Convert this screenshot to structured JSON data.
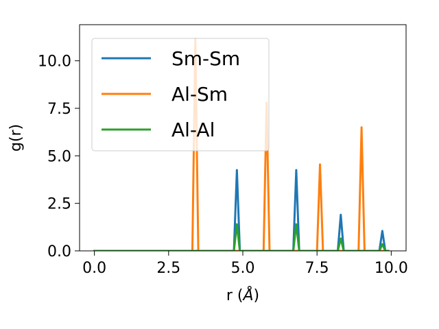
{
  "chart_data": {
    "type": "line",
    "xlabel_main": "r (",
    "xlabel_unit": "Å",
    "xlabel_close": ")",
    "ylabel": "g(r)",
    "xlim": [
      -0.5,
      10.5
    ],
    "ylim": [
      0,
      11.9
    ],
    "xticks": [
      0.0,
      2.5,
      5.0,
      7.5,
      10.0
    ],
    "xtick_labels": [
      "0.0",
      "2.5",
      "5.0",
      "7.5",
      "10.0"
    ],
    "yticks": [
      0.0,
      2.5,
      5.0,
      7.5,
      10.0
    ],
    "ytick_labels": [
      "0.0",
      "2.5",
      "5.0",
      "7.5",
      "10.0"
    ],
    "grid": false,
    "legend_position": "upper-left",
    "series": [
      {
        "name": "Sm-Sm",
        "color": "#1f77b4",
        "x": [
          0.0,
          4.7,
          4.8,
          4.9,
          6.7,
          6.8,
          6.9,
          8.2,
          8.3,
          8.4,
          9.6,
          9.7,
          9.8,
          9.9
        ],
        "y": [
          0.0,
          0.0,
          4.25,
          0.0,
          0.0,
          4.25,
          0.0,
          0.0,
          1.9,
          0.0,
          0.0,
          1.05,
          0.0,
          0.0
        ]
      },
      {
        "name": "Al-Sm",
        "color": "#ff7f0e",
        "x": [
          0.0,
          3.3,
          3.4,
          3.5,
          5.7,
          5.8,
          5.9,
          7.5,
          7.6,
          7.7,
          8.9,
          9.0,
          9.1,
          9.9
        ],
        "y": [
          0.0,
          0.0,
          11.15,
          0.0,
          0.0,
          7.8,
          0.0,
          0.0,
          4.55,
          0.0,
          0.0,
          6.5,
          0.0,
          0.0
        ]
      },
      {
        "name": "Al-Al",
        "color": "#2ca02c",
        "x": [
          0.0,
          4.7,
          4.8,
          4.9,
          6.7,
          6.8,
          6.9,
          8.2,
          8.3,
          8.4,
          9.6,
          9.7,
          9.8,
          9.9
        ],
        "y": [
          0.0,
          0.0,
          1.4,
          0.0,
          0.0,
          1.4,
          0.0,
          0.0,
          0.65,
          0.0,
          0.0,
          0.35,
          0.0,
          0.0
        ]
      }
    ]
  }
}
